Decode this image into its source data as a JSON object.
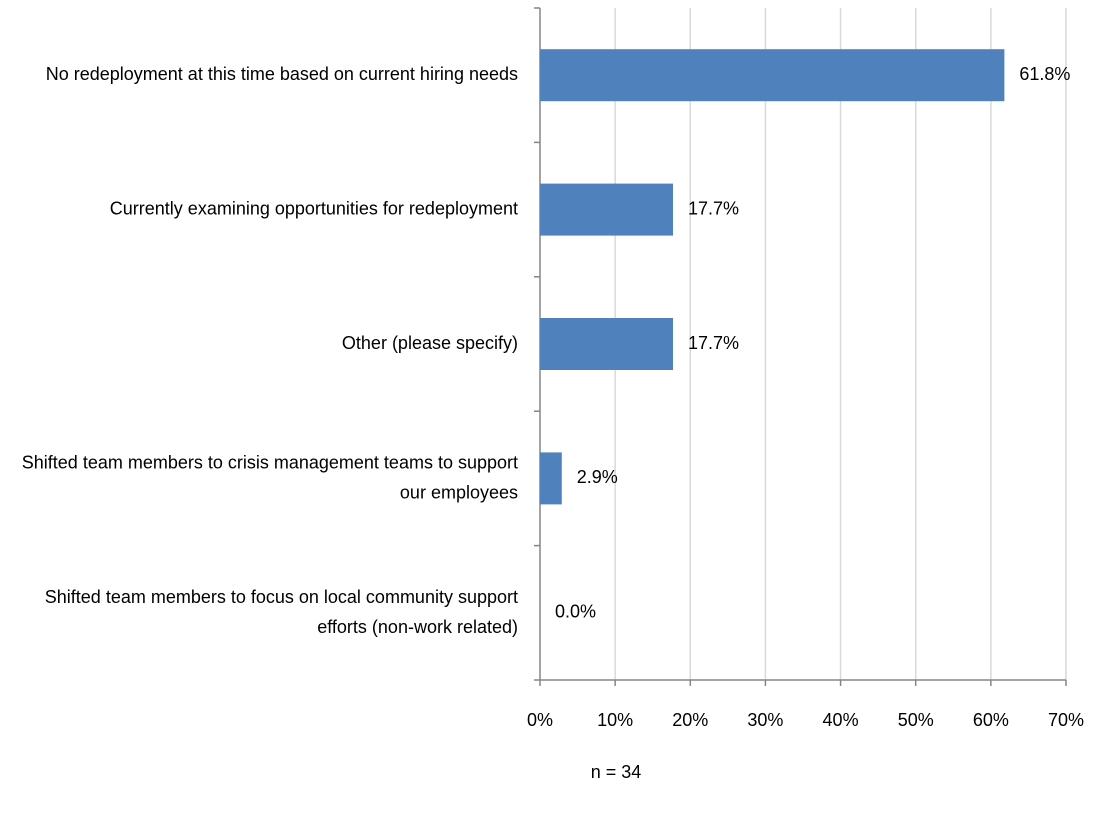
{
  "chart_data": {
    "type": "bar",
    "orientation": "horizontal",
    "categories": [
      "No redeployment at this time based on current hiring needs",
      "Currently examining opportunities for redeployment",
      "Other (please specify)",
      "Shifted team members to crisis management teams to support our employees",
      "Shifted team members to focus on local community support efforts (non-work related)"
    ],
    "values": [
      61.8,
      17.7,
      17.7,
      2.9,
      0.0
    ],
    "value_labels": [
      "61.8%",
      "17.7%",
      "17.7%",
      "2.9%",
      "0.0%"
    ],
    "color": "#4f81bd",
    "xlim": [
      0,
      70
    ],
    "xticks": [
      {
        "value": 0,
        "label": "0%"
      },
      {
        "value": 10,
        "label": "10%"
      },
      {
        "value": 20,
        "label": "20%"
      },
      {
        "value": 30,
        "label": "30%"
      },
      {
        "value": 40,
        "label": "40%"
      },
      {
        "value": 50,
        "label": "50%"
      },
      {
        "value": 60,
        "label": "60%"
      },
      {
        "value": 70,
        "label": "70%"
      }
    ],
    "grid": true,
    "annotation": "n = 34"
  }
}
